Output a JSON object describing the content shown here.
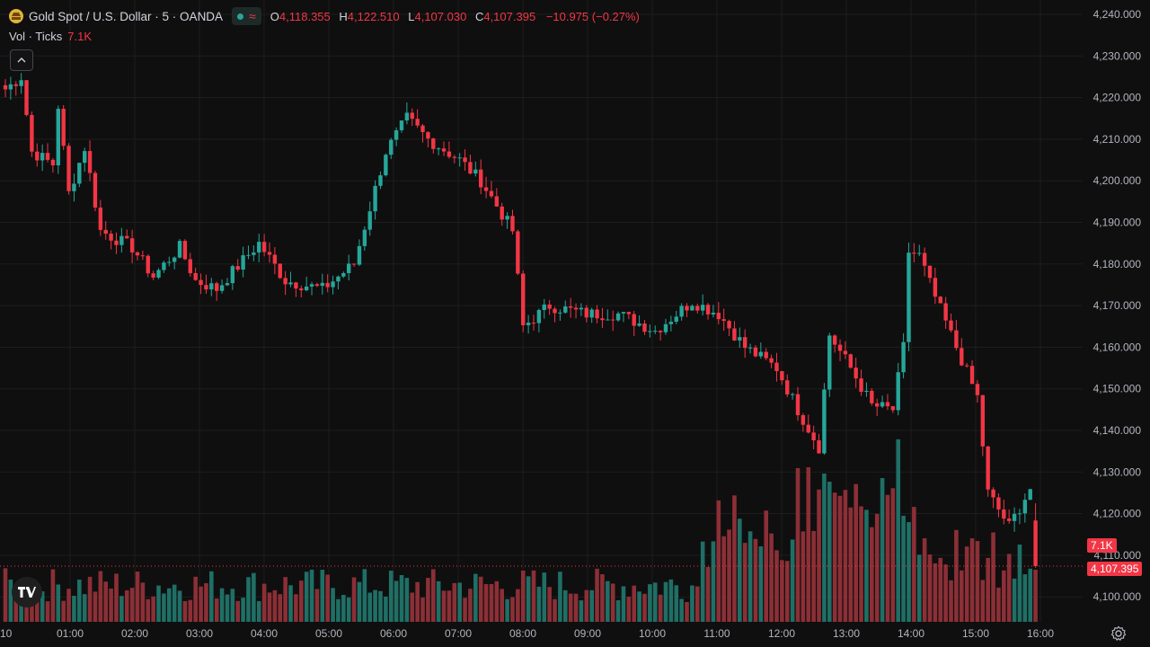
{
  "header": {
    "symbol_title": "Gold Spot / U.S. Dollar · 5 · OANDA",
    "ohlc": {
      "o_label": "O",
      "o_value": "4,118.355",
      "h_label": "H",
      "h_value": "4,122.510",
      "l_label": "L",
      "l_value": "4,107.030",
      "c_label": "C",
      "c_value": "4,107.395",
      "change": "−10.975 (−0.27%)"
    },
    "volume_label": "Vol · Ticks",
    "volume_value": "7.1K"
  },
  "price_axis": {
    "ticks": [
      "4,240.000",
      "4,230.000",
      "4,220.000",
      "4,210.000",
      "4,200.000",
      "4,190.000",
      "4,180.000",
      "4,170.000",
      "4,160.000",
      "4,150.000",
      "4,140.000",
      "4,130.000",
      "4,120.000",
      "4,110.000",
      "4,100.000"
    ],
    "volume_tag": "7.1K",
    "last_price_tag": "4,107.395"
  },
  "time_axis": {
    "ticks": [
      "10",
      "01:00",
      "02:00",
      "03:00",
      "04:00",
      "05:00",
      "06:00",
      "07:00",
      "08:00",
      "09:00",
      "10:00",
      "11:00",
      "12:00",
      "13:00",
      "14:00",
      "15:00",
      "16:00"
    ]
  },
  "colors": {
    "background": "#0f0f0f",
    "up": "#26a69a",
    "down": "#f23645",
    "up_volume": "#1f6f66",
    "down_volume": "#8c2f36",
    "grid": "#1e1e1e",
    "text": "#d1d4dc"
  },
  "icons": [
    "gold-symbol-icon",
    "status-dot-icon",
    "wave-icon",
    "chevron-up-icon",
    "tradingview-logo-icon",
    "settings-icon"
  ],
  "chart_data": {
    "type": "candlestick",
    "interval": "5",
    "ylim": [
      4095,
      4242
    ],
    "anchors": [
      [
        0,
        4222
      ],
      [
        3,
        4225
      ],
      [
        5,
        4207
      ],
      [
        9,
        4204
      ],
      [
        10,
        4218
      ],
      [
        12,
        4197
      ],
      [
        15,
        4208
      ],
      [
        18,
        4188
      ],
      [
        24,
        4184
      ],
      [
        28,
        4177
      ],
      [
        33,
        4184
      ],
      [
        36,
        4176
      ],
      [
        40,
        4174
      ],
      [
        48,
        4185
      ],
      [
        53,
        4176
      ],
      [
        60,
        4174
      ],
      [
        66,
        4180
      ],
      [
        72,
        4207
      ],
      [
        76,
        4215
      ],
      [
        80,
        4210
      ],
      [
        86,
        4205
      ],
      [
        90,
        4200
      ],
      [
        96,
        4188
      ],
      [
        98,
        4165
      ],
      [
        103,
        4170
      ],
      [
        110,
        4168
      ],
      [
        116,
        4168
      ],
      [
        123,
        4164
      ],
      [
        130,
        4171
      ],
      [
        135,
        4168
      ],
      [
        140,
        4160
      ],
      [
        146,
        4155
      ],
      [
        150,
        4145
      ],
      [
        154,
        4136
      ],
      [
        156,
        4163
      ],
      [
        160,
        4155
      ],
      [
        164,
        4146
      ],
      [
        168,
        4145
      ],
      [
        170,
        4160
      ],
      [
        171,
        4183
      ],
      [
        173,
        4182
      ],
      [
        176,
        4172
      ],
      [
        180,
        4160
      ],
      [
        184,
        4148
      ],
      [
        186,
        4125
      ],
      [
        190,
        4117
      ],
      [
        194,
        4126
      ],
      [
        195,
        4107.395
      ]
    ],
    "last": {
      "open": 4118.355,
      "high": 4122.51,
      "low": 4107.03,
      "close": 4107.395
    }
  }
}
